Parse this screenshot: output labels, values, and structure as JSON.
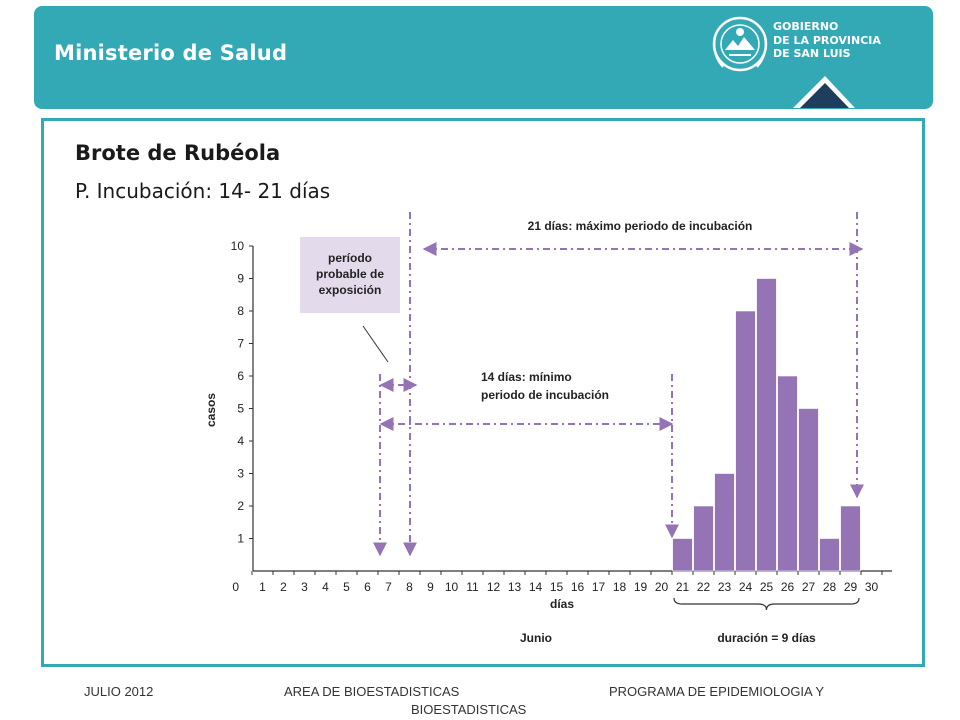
{
  "header": {
    "ministry": "Ministerio de Salud",
    "government": [
      "GOBIERNO",
      "DE LA PROVINCIA",
      "DE SAN LUIS"
    ]
  },
  "slide": {
    "title": "Brote de Rubéola",
    "subtitle": "P. Incubación: 14- 21 días"
  },
  "chart_data": {
    "type": "bar",
    "categories": [
      "1",
      "2",
      "3",
      "4",
      "5",
      "6",
      "7",
      "8",
      "9",
      "10",
      "11",
      "12",
      "13",
      "14",
      "15",
      "16",
      "17",
      "18",
      "19",
      "20",
      "21",
      "22",
      "23",
      "24",
      "25",
      "26",
      "27",
      "28",
      "29",
      "30"
    ],
    "values": [
      0,
      0,
      0,
      0,
      0,
      0,
      0,
      0,
      0,
      0,
      0,
      0,
      0,
      0,
      0,
      0,
      0,
      0,
      0,
      0,
      1,
      2,
      3,
      8,
      9,
      6,
      5,
      1,
      2,
      0
    ],
    "xlabel": "días",
    "ylabel": "casos",
    "ylim": [
      0,
      10
    ],
    "yticks": [
      "0",
      "1",
      "2",
      "3",
      "4",
      "5",
      "6",
      "7",
      "8",
      "9",
      "10"
    ],
    "month_label": "Junio",
    "bar_color": "#9474b5",
    "annotation_color": "#9474b5",
    "annotations": {
      "exposure_box": [
        "período",
        "probable de",
        "exposición"
      ],
      "max_incubation": "21 días: máximo periodo de incubación",
      "min_incubation": [
        "14 días: mínimo",
        "periodo de incubación"
      ],
      "duration": "duración = 9 días"
    }
  },
  "footer": {
    "left": "JULIO 2012",
    "center": "AREA DE BIOESTADISTICAS",
    "right": "PROGRAMA  DE EPIDEMIOLOGIA Y",
    "second_line": "BIOESTADISTICAS"
  }
}
